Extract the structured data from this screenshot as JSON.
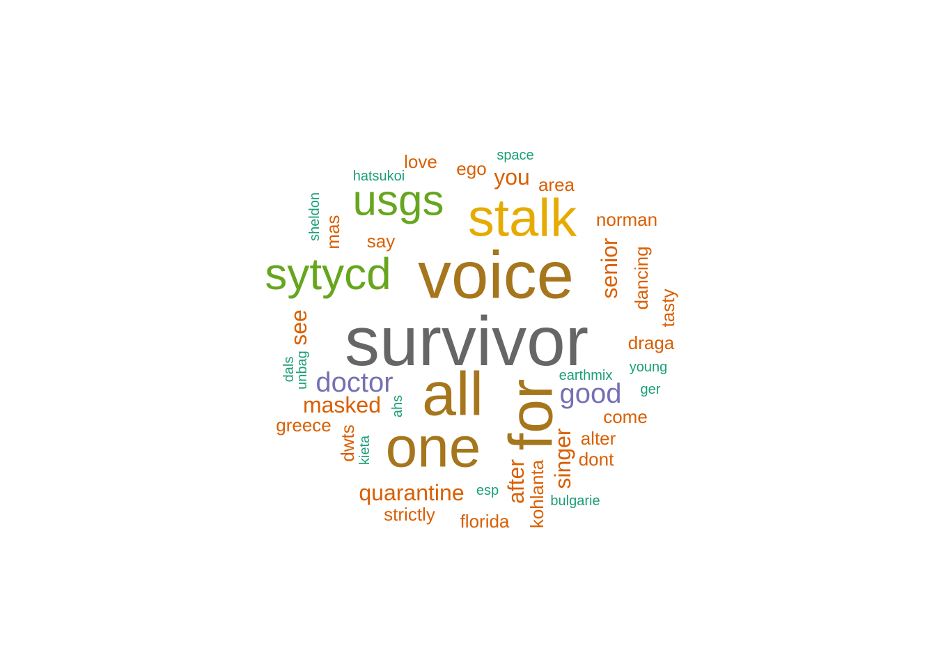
{
  "palette": {
    "gray": "#666666",
    "olive": "#a6761d",
    "gold": "#e6ab02",
    "green": "#66a61e",
    "purple": "#7570b3",
    "orange": "#d95f02",
    "teal": "#1b9e77"
  },
  "words": [
    {
      "id": "survivor",
      "text": "survivor",
      "color": "gray"
    },
    {
      "id": "voice",
      "text": "voice",
      "color": "olive"
    },
    {
      "id": "all",
      "text": "all",
      "color": "olive"
    },
    {
      "id": "one",
      "text": "one",
      "color": "olive"
    },
    {
      "id": "for",
      "text": "for",
      "color": "olive"
    },
    {
      "id": "stalk",
      "text": "stalk",
      "color": "gold"
    },
    {
      "id": "usgs",
      "text": "usgs",
      "color": "green"
    },
    {
      "id": "sytycd",
      "text": "sytycd",
      "color": "green"
    },
    {
      "id": "doctor",
      "text": "doctor",
      "color": "purple"
    },
    {
      "id": "good",
      "text": "good",
      "color": "purple"
    },
    {
      "id": "masked",
      "text": "masked",
      "color": "orange"
    },
    {
      "id": "quarantine",
      "text": "quarantine",
      "color": "orange"
    },
    {
      "id": "singer",
      "text": "singer",
      "color": "orange"
    },
    {
      "id": "senior",
      "text": "senior",
      "color": "orange"
    },
    {
      "id": "see",
      "text": "see",
      "color": "orange"
    },
    {
      "id": "after",
      "text": "after",
      "color": "orange"
    },
    {
      "id": "you",
      "text": "you",
      "color": "orange"
    },
    {
      "id": "norman",
      "text": "norman",
      "color": "orange"
    },
    {
      "id": "dancing",
      "text": "dancing",
      "color": "orange"
    },
    {
      "id": "love",
      "text": "love",
      "color": "orange"
    },
    {
      "id": "ego",
      "text": "ego",
      "color": "orange"
    },
    {
      "id": "area",
      "text": "area",
      "color": "orange"
    },
    {
      "id": "say",
      "text": "say",
      "color": "orange"
    },
    {
      "id": "mas",
      "text": "mas",
      "color": "orange"
    },
    {
      "id": "tasty",
      "text": "tasty",
      "color": "orange"
    },
    {
      "id": "draga",
      "text": "draga",
      "color": "orange"
    },
    {
      "id": "come",
      "text": "come",
      "color": "orange"
    },
    {
      "id": "alter",
      "text": "alter",
      "color": "orange"
    },
    {
      "id": "dont",
      "text": "dont",
      "color": "orange"
    },
    {
      "id": "greece",
      "text": "greece",
      "color": "orange"
    },
    {
      "id": "dwts",
      "text": "dwts",
      "color": "orange"
    },
    {
      "id": "strictly",
      "text": "strictly",
      "color": "orange"
    },
    {
      "id": "florida",
      "text": "florida",
      "color": "orange"
    },
    {
      "id": "kohlanta",
      "text": "kohlanta",
      "color": "orange"
    },
    {
      "id": "space",
      "text": "space",
      "color": "teal"
    },
    {
      "id": "hatsukoi",
      "text": "hatsukoi",
      "color": "teal"
    },
    {
      "id": "sheldon",
      "text": "sheldon",
      "color": "teal"
    },
    {
      "id": "young",
      "text": "young",
      "color": "teal"
    },
    {
      "id": "earthmix",
      "text": "earthmix",
      "color": "teal"
    },
    {
      "id": "ger",
      "text": "ger",
      "color": "teal"
    },
    {
      "id": "dals",
      "text": "dals",
      "color": "teal"
    },
    {
      "id": "unbag",
      "text": "unbag",
      "color": "teal"
    },
    {
      "id": "ahs",
      "text": "ahs",
      "color": "teal"
    },
    {
      "id": "kieta",
      "text": "kieta",
      "color": "teal"
    },
    {
      "id": "esp",
      "text": "esp",
      "color": "teal"
    },
    {
      "id": "bulgarie",
      "text": "bulgarie",
      "color": "teal"
    }
  ]
}
